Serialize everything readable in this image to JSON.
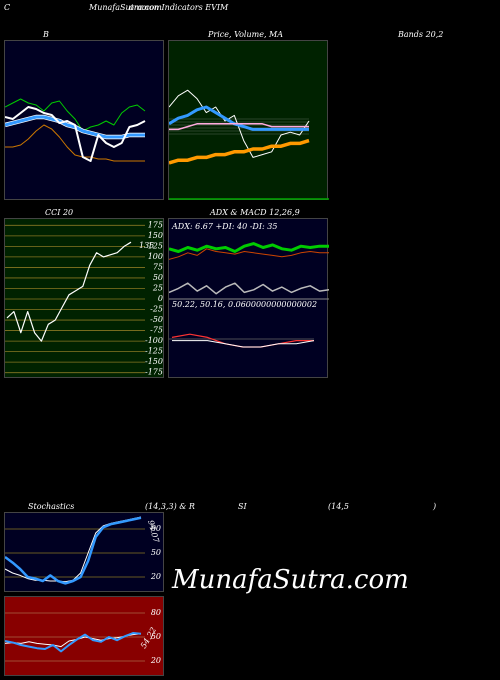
{
  "header": {
    "c_label": "C",
    "site": "MunafaSutra.com",
    "subtitle": "ommon Indicators EVIM"
  },
  "titles": {
    "bb": "B",
    "price": "Price, Volume, MA",
    "bands": "Bands 20,2",
    "cci": "CCI 20",
    "adx_macd": "ADX & MACD 12,26,9",
    "stoch": "Stochastics",
    "stoch_params": "(14,3,3) & R",
    "rsi": "SI",
    "rsi_params": "(14,5",
    "rsi_close": ")"
  },
  "watermark": "MunafaSutra.com",
  "colors": {
    "green_bg": "#002200",
    "navy_bg": "#000022",
    "red_bg": "#880000",
    "blue": "#3399ff",
    "green_line": "#00cc00",
    "orange": "#ff9900"
  },
  "chart_data": [
    {
      "type": "line",
      "name": "bollinger",
      "title": "",
      "series": [
        {
          "name": "",
          "values": [
            82,
            84,
            86,
            84,
            83,
            80,
            84,
            85,
            80,
            76,
            70,
            72,
            73,
            75,
            73,
            79,
            82,
            83,
            80
          ]
        },
        {
          "name": "",
          "values": [
            73,
            74,
            75,
            76,
            77,
            77,
            76,
            75,
            73,
            72,
            70,
            69,
            68,
            67,
            67,
            67,
            68,
            68,
            68
          ]
        },
        {
          "name": "",
          "values": [
            62,
            62,
            63,
            66,
            70,
            73,
            71,
            67,
            62,
            58,
            57,
            57,
            56,
            56,
            55,
            55,
            55,
            55,
            55
          ]
        },
        {
          "name": "",
          "values": [
            77,
            76,
            79,
            82,
            81,
            79,
            78,
            74,
            75,
            73,
            57,
            55,
            68,
            64,
            62,
            64,
            72,
            73,
            75
          ]
        }
      ]
    },
    {
      "type": "line",
      "name": "price-volume-ma",
      "series": [
        {
          "name": "",
          "values": [
            60,
            64,
            66,
            63,
            58,
            60,
            55,
            57,
            48,
            42,
            43,
            44,
            50,
            51,
            50,
            55
          ]
        },
        {
          "name": "",
          "values": [
            54,
            56,
            57,
            59,
            60,
            58,
            56,
            54,
            53,
            52,
            52,
            52,
            52,
            52,
            52,
            52
          ]
        },
        {
          "name": "",
          "values": [
            52,
            52,
            53,
            54,
            54,
            54,
            54,
            54,
            54,
            54,
            54,
            53,
            53,
            53,
            53,
            53
          ]
        },
        {
          "name": "",
          "values": [
            40,
            41,
            41,
            42,
            42,
            43,
            43,
            44,
            44,
            45,
            45,
            46,
            46,
            47,
            47,
            48
          ]
        }
      ]
    },
    {
      "type": "line",
      "name": "cci",
      "yticks": [
        175,
        150,
        125,
        100,
        75,
        50,
        25,
        0,
        -25,
        -50,
        -75,
        -100,
        -125,
        -150,
        -175
      ],
      "last_label": "135",
      "values": [
        -45,
        -30,
        -80,
        -30,
        -80,
        -100,
        -60,
        -50,
        -20,
        10,
        20,
        30,
        80,
        110,
        100,
        105,
        110,
        125,
        135
      ]
    },
    {
      "type": "line",
      "name": "adx",
      "label": "ADX: 6.67 +DI: 40 -DI: 35",
      "series": [
        {
          "name": "",
          "values": [
            30,
            32,
            35,
            33,
            38,
            36,
            35,
            34,
            36,
            35,
            34,
            33,
            32,
            33,
            35,
            36,
            35,
            35
          ]
        },
        {
          "name": "",
          "values": [
            38,
            36,
            39,
            37,
            40,
            38,
            39,
            36,
            40,
            42,
            39,
            41,
            38,
            37,
            40,
            39,
            40,
            40
          ]
        },
        {
          "name": "",
          "values": [
            5,
            8,
            12,
            6,
            10,
            4,
            9,
            12,
            5,
            7,
            11,
            6,
            9,
            5,
            8,
            10,
            6,
            7
          ]
        }
      ]
    },
    {
      "type": "line",
      "name": "macd",
      "label": "50.22, 50.16, 0.0600000000000002",
      "series": [
        {
          "name": "",
          "values": [
            50.3,
            50.4,
            50.3,
            50.1,
            50.0,
            50.0,
            50.1,
            50.2,
            50.2
          ]
        },
        {
          "name": "",
          "values": [
            50.2,
            50.2,
            50.2,
            50.1,
            50.0,
            50.0,
            50.1,
            50.1,
            50.2
          ]
        }
      ]
    },
    {
      "type": "line",
      "name": "stochastics",
      "yticks": [
        80,
        50,
        20
      ],
      "last_label": "94.07",
      "series": [
        {
          "name": "",
          "values": [
            45,
            38,
            30,
            20,
            18,
            15,
            22,
            15,
            12,
            15,
            20,
            40,
            70,
            82,
            86,
            88,
            90,
            92,
            94
          ]
        },
        {
          "name": "",
          "values": [
            30,
            25,
            22,
            18,
            16,
            16,
            15,
            15,
            14,
            16,
            25,
            50,
            75,
            84,
            87,
            89,
            91,
            93,
            95
          ]
        }
      ]
    },
    {
      "type": "line",
      "name": "rsi",
      "yticks": [
        80,
        50,
        20
      ],
      "last_label": "54.22",
      "series": [
        {
          "name": "",
          "values": [
            42,
            43,
            42,
            44,
            42,
            41,
            40,
            38,
            45,
            47,
            50,
            48,
            46,
            48,
            49,
            51,
            53,
            54
          ]
        },
        {
          "name": "",
          "values": [
            45,
            43,
            40,
            38,
            36,
            35,
            40,
            32,
            40,
            47,
            53,
            46,
            44,
            50,
            46,
            51,
            55,
            54
          ]
        }
      ]
    }
  ]
}
